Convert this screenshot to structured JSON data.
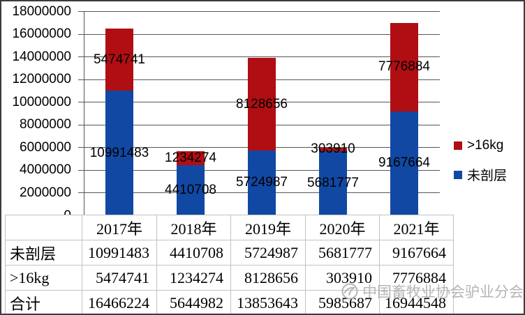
{
  "chart_data": {
    "type": "bar",
    "stacked": true,
    "title": "",
    "xlabel": "",
    "ylabel": "",
    "categories": [
      "2017年",
      "2018年",
      "2019年",
      "2020年",
      "2021年"
    ],
    "series": [
      {
        "name": "未剖层",
        "color": "#1148a3",
        "values": [
          10991483,
          4410708,
          5724987,
          5681777,
          9167664
        ]
      },
      {
        "name": ">16kg",
        "color": "#b00e13",
        "values": [
          5474741,
          1234274,
          8128656,
          303910,
          7776884
        ]
      }
    ],
    "totals": [
      16466224,
      5644982,
      13853643,
      5985687,
      16944548
    ],
    "ylim": [
      0,
      18000000
    ],
    "ytick_step": 2000000,
    "ytick_labels": [
      "0",
      "2000000",
      "4000000",
      "6000000",
      "8000000",
      "10000000",
      "12000000",
      "14000000",
      "16000000",
      "18000000"
    ],
    "grid": true,
    "data_labels": true,
    "legend_position": "right"
  },
  "legend": {
    "items": [
      {
        "label": ">16kg",
        "color": "#b00e13"
      },
      {
        "label": "未剖层",
        "color": "#1148a3"
      }
    ]
  },
  "table": {
    "header_row": [
      "",
      "2017年",
      "2018年",
      "2019年",
      "2020年",
      "2021年"
    ],
    "rows": [
      {
        "label": "未剖层",
        "values": [
          "10991483",
          "4410708",
          "5724987",
          "5681777",
          "9167664"
        ]
      },
      {
        "label": ">16kg",
        "values": [
          "5474741",
          "1234274",
          "8128656",
          "303910",
          "7776884"
        ]
      },
      {
        "label": "合计",
        "values": [
          "16466224",
          "5644982",
          "13853643",
          "5985687",
          "16944548"
        ]
      }
    ]
  },
  "watermark": {
    "text": "中国畜牧业协会驴业分会"
  },
  "colors": {
    "bar_blue": "#1148a3",
    "bar_red": "#b00e13",
    "gridline": "#565656",
    "table_border": "#c2c2c2",
    "watermark": "#b5b5b5",
    "frame": "#3b3b3b",
    "text": "#000000"
  }
}
